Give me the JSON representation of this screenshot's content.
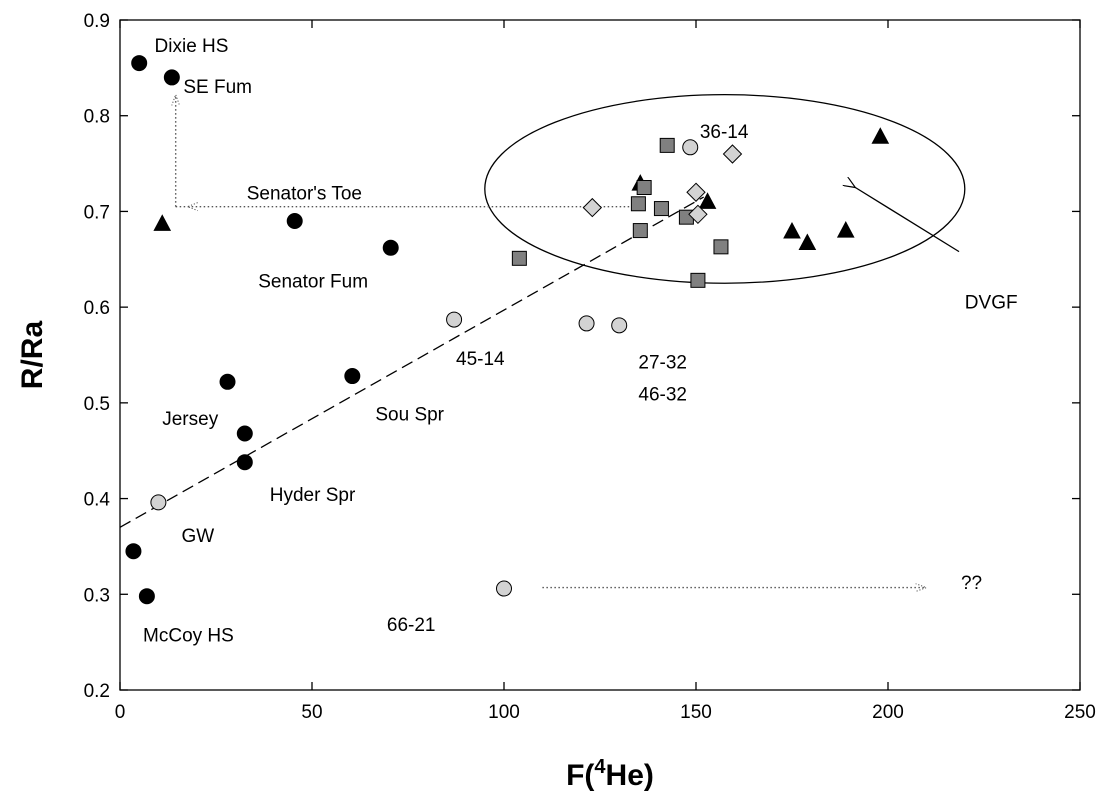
{
  "chart_data": {
    "type": "scatter",
    "title": "",
    "xlabel_main": "F(",
    "xlabel_sup": "4",
    "xlabel_tail": "He)",
    "ylabel": "R/Ra",
    "xlim": [
      0,
      250
    ],
    "ylim": [
      0.2,
      0.9
    ],
    "xticks": [
      0,
      50,
      100,
      150,
      200,
      250
    ],
    "yticks": [
      0.2,
      0.3,
      0.4,
      0.5,
      0.6,
      0.7,
      0.8,
      0.9
    ],
    "xtick_labels": [
      "0",
      "50",
      "100",
      "150",
      "200",
      "250"
    ],
    "ytick_labels": [
      "0.2",
      "0.3",
      "0.4",
      "0.5",
      "0.6",
      "0.7",
      "0.8",
      "0.9"
    ],
    "grid": false,
    "colors": {
      "black_fill": "#000000",
      "light_gray_fill": "#d3d3d3",
      "dark_gray_fill": "#808080",
      "line": "#000000",
      "dotted": "#555555"
    },
    "series": [
      {
        "marker": "circle",
        "fill": "#000000",
        "points": [
          [
            5,
            0.855
          ],
          [
            13.5,
            0.84
          ],
          [
            45.5,
            0.69
          ],
          [
            70.5,
            0.662
          ],
          [
            28,
            0.522
          ],
          [
            32.5,
            0.468
          ],
          [
            32.5,
            0.438
          ],
          [
            60.5,
            0.528
          ],
          [
            3.5,
            0.345
          ],
          [
            7,
            0.298
          ]
        ]
      },
      {
        "marker": "circle",
        "fill": "#d3d3d3",
        "points": [
          [
            87,
            0.587
          ],
          [
            10,
            0.396
          ],
          [
            121.5,
            0.583
          ],
          [
            130,
            0.581
          ],
          [
            148.5,
            0.767
          ],
          [
            100,
            0.306
          ]
        ]
      },
      {
        "marker": "triangle",
        "fill": "#000000",
        "points": [
          [
            11,
            0.687
          ],
          [
            135.5,
            0.729
          ],
          [
            153,
            0.71
          ],
          [
            175,
            0.679
          ],
          [
            179,
            0.667
          ],
          [
            189,
            0.68
          ],
          [
            198,
            0.778
          ]
        ]
      },
      {
        "marker": "square",
        "fill": "#808080",
        "points": [
          [
            104,
            0.651
          ],
          [
            135,
            0.708
          ],
          [
            135.5,
            0.68
          ],
          [
            136.5,
            0.725
          ],
          [
            141,
            0.703
          ],
          [
            142.5,
            0.769
          ],
          [
            147.5,
            0.694
          ],
          [
            150.5,
            0.628
          ],
          [
            156.5,
            0.663
          ]
        ]
      },
      {
        "marker": "diamond",
        "fill": "#d3d3d3",
        "points": [
          [
            123,
            0.704
          ],
          [
            150,
            0.72
          ],
          [
            150.5,
            0.697
          ],
          [
            159.5,
            0.76
          ]
        ]
      }
    ],
    "annotations": [
      {
        "text": "Dixie HS",
        "x": 9,
        "y": 0.874
      },
      {
        "text": "SE Fum",
        "x": 16.5,
        "y": 0.831
      },
      {
        "text": "Senator's Toe",
        "x": 33,
        "y": 0.72
      },
      {
        "text": "Senator Fum",
        "x": 36,
        "y": 0.628
      },
      {
        "text": "45-14",
        "x": 87.5,
        "y": 0.547
      },
      {
        "text": "27-32",
        "x": 135,
        "y": 0.543
      },
      {
        "text": "46-32",
        "x": 135,
        "y": 0.51
      },
      {
        "text": "36-14",
        "x": 151,
        "y": 0.784
      },
      {
        "text": "Jersey",
        "x": 11,
        "y": 0.484
      },
      {
        "text": "Sou Spr",
        "x": 66.5,
        "y": 0.489
      },
      {
        "text": "Hyder Spr",
        "x": 39,
        "y": 0.405
      },
      {
        "text": "GW",
        "x": 16,
        "y": 0.362
      },
      {
        "text": "66-21",
        "x": 69.5,
        "y": 0.269
      },
      {
        "text": "McCoy HS",
        "x": 6,
        "y": 0.258
      },
      {
        "text": "DVGF",
        "x": 220,
        "y": 0.606
      },
      {
        "text": "??",
        "x": 219,
        "y": 0.313
      }
    ],
    "trend_line": {
      "x": [
        0,
        152
      ],
      "y": [
        0.37,
        0.715
      ]
    },
    "ellipse": {
      "cx": 157.5,
      "cy": 0.7235,
      "rx": 62.5,
      "ry": 0.0985
    },
    "dotted_vertical": {
      "x": 14.5,
      "y": [
        0.705,
        0.822
      ]
    },
    "dotted_horizontal": {
      "y": 0.705,
      "x": [
        14.5,
        133
      ]
    },
    "dotted_arrow": {
      "y": 0.307,
      "x": [
        110,
        210
      ]
    },
    "dvgf_arrow": {
      "from": [
        218.5,
        0.658
      ],
      "to": [
        191.5,
        0.725
      ]
    }
  }
}
